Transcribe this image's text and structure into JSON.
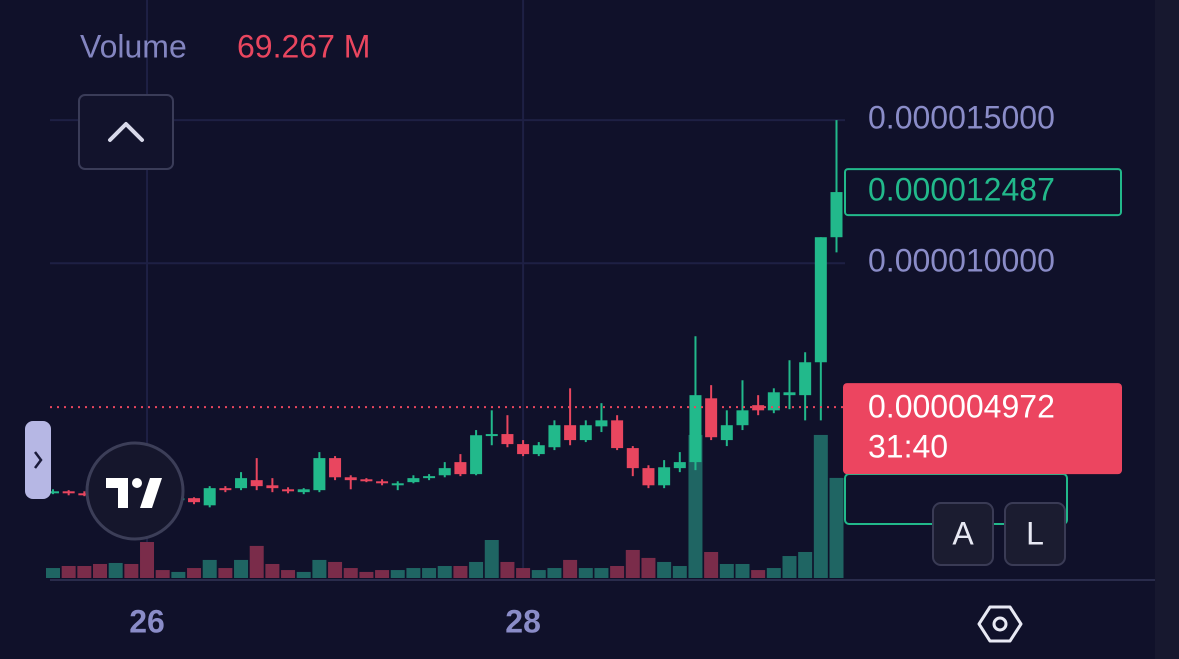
{
  "chart_data": {
    "type": "candlestick",
    "categories": [
      null,
      null,
      null,
      null,
      null,
      null,
      "26",
      null,
      null,
      null,
      null,
      null,
      null,
      null,
      null,
      null,
      null,
      null,
      null,
      null,
      null,
      null,
      null,
      null,
      null,
      null,
      null,
      null,
      null,
      null,
      "28",
      null,
      null,
      null,
      null,
      null,
      null,
      null,
      null,
      null,
      null,
      null,
      null,
      null,
      null,
      null,
      null,
      null,
      null,
      null,
      null
    ],
    "open": [
      1.96e-06,
      2.03e-06,
      1.96e-06,
      1.93e-06,
      1.86e-06,
      1.96e-06,
      1.89e-06,
      1.82e-06,
      1.72e-06,
      1.79e-06,
      1.54e-06,
      2.14e-06,
      2.14e-06,
      2.42e-06,
      2.24e-06,
      2.1e-06,
      2e-06,
      2.07e-06,
      3.19e-06,
      2.52e-06,
      2.45e-06,
      2.38e-06,
      2.24e-06,
      2.35e-06,
      2.49e-06,
      2.59e-06,
      3.05e-06,
      2.63e-06,
      3.96e-06,
      4.03e-06,
      3.68e-06,
      3.33e-06,
      3.57e-06,
      4.34e-06,
      3.82e-06,
      4.3e-06,
      4.51e-06,
      3.54e-06,
      2.84e-06,
      2.24e-06,
      2.84e-06,
      3.05e-06,
      5.28e-06,
      3.82e-06,
      4.34e-06,
      5.04e-06,
      4.86e-06,
      5.39e-06,
      5.39e-06,
      6.54e-06,
      1.091e-05
    ],
    "high": [
      2.1e-06,
      2.07e-06,
      2.03e-06,
      2e-06,
      2e-06,
      2e-06,
      1.93e-06,
      1.86e-06,
      1.86e-06,
      1.82e-06,
      2.21e-06,
      2.21e-06,
      2.7e-06,
      3.19e-06,
      2.49e-06,
      2.17e-06,
      2.14e-06,
      3.4e-06,
      3.26e-06,
      2.59e-06,
      2.49e-06,
      2.45e-06,
      2.38e-06,
      2.59e-06,
      2.63e-06,
      3.05e-06,
      3.33e-06,
      4.17e-06,
      4.86e-06,
      4.69e-06,
      3.82e-06,
      3.75e-06,
      4.51e-06,
      5.63e-06,
      4.51e-06,
      5.11e-06,
      4.69e-06,
      3.61e-06,
      2.94e-06,
      3.12e-06,
      3.4e-06,
      7.45e-06,
      5.74e-06,
      4.86e-06,
      5.91e-06,
      5.39e-06,
      5.63e-06,
      6.61e-06,
      6.89e-06,
      1.091e-05,
      1.5e-05
    ],
    "low": [
      1.93e-06,
      1.89e-06,
      1.86e-06,
      1.82e-06,
      1.82e-06,
      1.86e-06,
      1.79e-06,
      1.68e-06,
      1.68e-06,
      1.58e-06,
      1.47e-06,
      2e-06,
      2.07e-06,
      2.07e-06,
      2e-06,
      1.96e-06,
      1.93e-06,
      2e-06,
      2.42e-06,
      2.1e-06,
      2.35e-06,
      2.24e-06,
      2.07e-06,
      2.31e-06,
      2.42e-06,
      2.52e-06,
      2.56e-06,
      2.59e-06,
      3.64e-06,
      3.57e-06,
      3.26e-06,
      3.26e-06,
      3.47e-06,
      3.64e-06,
      3.75e-06,
      4.1e-06,
      3.47e-06,
      2.56e-06,
      2.14e-06,
      2.14e-06,
      2.7e-06,
      2.77e-06,
      3.82e-06,
      3.61e-06,
      4.17e-06,
      4.69e-06,
      4.76e-06,
      4.9e-06,
      4.51e-06,
      4.51e-06,
      1.038e-05
    ],
    "close": [
      2.03e-06,
      1.96e-06,
      1.93e-06,
      1.86e-06,
      1.96e-06,
      1.89e-06,
      1.82e-06,
      1.72e-06,
      1.79e-06,
      1.65e-06,
      2.14e-06,
      2.07e-06,
      2.49e-06,
      2.21e-06,
      2.14e-06,
      2.03e-06,
      2.1e-06,
      3.19e-06,
      2.52e-06,
      2.42e-06,
      2.4e-06,
      2.31e-06,
      2.31e-06,
      2.49e-06,
      2.56e-06,
      2.84e-06,
      2.63e-06,
      3.99e-06,
      4.03e-06,
      3.68e-06,
      3.33e-06,
      3.64e-06,
      4.34e-06,
      3.82e-06,
      4.34e-06,
      4.51e-06,
      3.54e-06,
      2.84e-06,
      2.24e-06,
      2.87e-06,
      3.05e-06,
      5.39e-06,
      3.92e-06,
      4.34e-06,
      4.86e-06,
      4.86e-06,
      5.49e-06,
      5.49e-06,
      6.54e-06,
      1.091e-05,
      1.2487e-05
    ],
    "colors": {
      "up": "#22b98b",
      "down": "#e9465f",
      "volume_up": "#1f6563",
      "volume_down": "#7a2c4a"
    },
    "ylim": [
      -1e-06,
      1.92e-05
    ],
    "yticks": [
      {
        "value": 1.5e-05,
        "label": "0.000015000"
      },
      {
        "value": 1e-05,
        "label": "0.000010000"
      }
    ],
    "grid": true,
    "volume": {
      "name": "Volume",
      "value_label": "69.267 M",
      "ylim": [
        0,
        400000000
      ],
      "values": [
        6900000,
        8300000,
        8300000,
        9700000,
        10400000,
        9700000,
        24900000,
        5500000,
        4200000,
        6900000,
        12500000,
        6900000,
        12500000,
        22200000,
        9700000,
        5500000,
        4200000,
        12500000,
        11100000,
        6900000,
        4200000,
        5500000,
        5500000,
        6900000,
        6900000,
        8300000,
        8300000,
        11100000,
        26300000,
        11100000,
        6900000,
        5500000,
        6900000,
        12500000,
        6900000,
        6900000,
        8300000,
        19400000,
        13900000,
        11100000,
        8300000,
        99000000,
        18000000,
        9700000,
        9700000,
        5500000,
        6900000,
        15200000,
        18000000,
        99000000,
        69267000
      ]
    },
    "last_price": {
      "value": 1.2487e-05,
      "label": "0.000012487"
    },
    "marker": {
      "value": 4.972e-06,
      "label": "0.000004972",
      "countdown": "31:40"
    },
    "buttons": [
      "A",
      "L"
    ]
  }
}
